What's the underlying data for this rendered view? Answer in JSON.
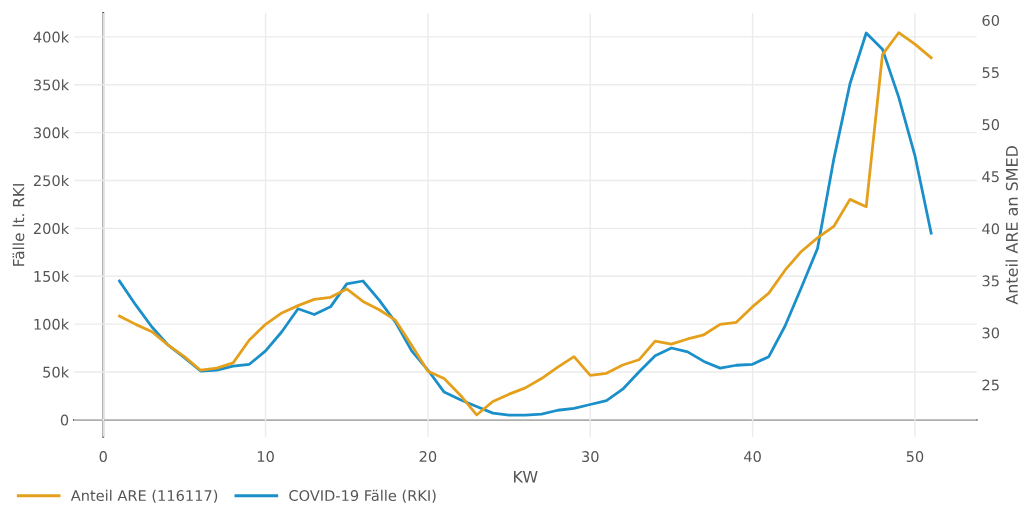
{
  "chart_data": {
    "type": "line",
    "xlabel": "KW",
    "ylabel": "Fälle lt. RKI",
    "y2label": "Anteil ARE an SMED",
    "x": [
      1,
      2,
      3,
      4,
      5,
      6,
      7,
      8,
      9,
      10,
      11,
      12,
      13,
      14,
      15,
      16,
      17,
      18,
      19,
      20,
      21,
      22,
      23,
      24,
      25,
      26,
      27,
      28,
      29,
      30,
      31,
      32,
      33,
      34,
      35,
      36,
      37,
      38,
      39,
      40,
      41,
      42,
      43,
      44,
      45,
      46,
      47,
      48,
      49,
      50,
      51
    ],
    "series": [
      {
        "name": "Anteil ARE (116117)",
        "color": "#e5a01b",
        "axis": "y2",
        "values": [
          31.6,
          30.8,
          30.1,
          28.8,
          27.7,
          26.4,
          26.6,
          27.1,
          29.3,
          30.8,
          31.9,
          32.6,
          33.2,
          33.4,
          34.2,
          33.0,
          32.2,
          31.2,
          28.8,
          26.3,
          25.6,
          24.0,
          22.1,
          23.4,
          24.1,
          24.7,
          25.6,
          26.7,
          27.7,
          25.9,
          26.1,
          26.9,
          27.4,
          29.2,
          28.9,
          29.4,
          29.8,
          30.8,
          31.0,
          32.5,
          33.8,
          36.0,
          37.8,
          39.1,
          40.2,
          42.8,
          42.1,
          56.7,
          58.8,
          57.7,
          56.4
        ]
      },
      {
        "name": "COVID-19 Fälle (RKI)",
        "color": "#1a8fc9",
        "values": [
          145000,
          120000,
          97000,
          78000,
          65000,
          51000,
          52000,
          56000,
          58000,
          72000,
          92000,
          116000,
          110000,
          118000,
          142000,
          145000,
          125000,
          102000,
          72000,
          52000,
          29000,
          21000,
          14000,
          7000,
          5000,
          5000,
          6000,
          10000,
          12000,
          16000,
          20000,
          32000,
          50000,
          67000,
          75000,
          71000,
          61000,
          54000,
          57000,
          58000,
          66000,
          98000,
          138000,
          179000,
          272000,
          351000,
          404000,
          387000,
          337000,
          276000,
          195000
        ]
      }
    ],
    "xlim": [
      -1.8,
      53.8
    ],
    "xticks": [
      0,
      10,
      20,
      30,
      40,
      50
    ],
    "ylim": [
      -17800,
      425000
    ],
    "yticks": [
      {
        "value": 0,
        "label": "0"
      },
      {
        "value": 50000,
        "label": "50k"
      },
      {
        "value": 100000,
        "label": "100k"
      },
      {
        "value": 150000,
        "label": "150k"
      },
      {
        "value": 200000,
        "label": "200k"
      },
      {
        "value": 250000,
        "label": "250k"
      },
      {
        "value": 300000,
        "label": "300k"
      },
      {
        "value": 350000,
        "label": "350k"
      },
      {
        "value": 400000,
        "label": "400k"
      }
    ],
    "y2lim": [
      20.0,
      60.7
    ],
    "y2ticks": [
      25,
      30,
      35,
      40,
      45,
      50,
      55,
      60
    ],
    "grid": true,
    "legend": "bottom left",
    "marker": "none",
    "line_style": "solid"
  }
}
